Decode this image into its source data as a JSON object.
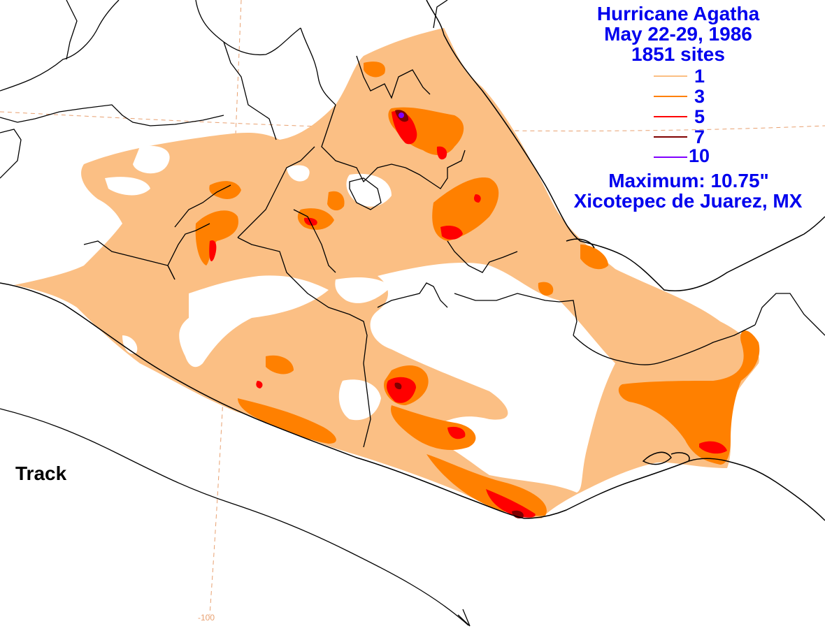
{
  "title": {
    "line1": "Hurricane Agatha",
    "line2": "May 22-29, 1986",
    "line3": "1851 sites"
  },
  "legend": {
    "items": [
      {
        "label": "1",
        "color": "#fbbf84"
      },
      {
        "label": "3",
        "color": "#ff8000"
      },
      {
        "label": "5",
        "color": "#ff0000"
      },
      {
        "label": "7",
        "color": "#800000"
      },
      {
        "label": "10",
        "color": "#8000ff"
      }
    ]
  },
  "maximum": {
    "value_text": "Maximum:  10.75\"",
    "location": "Xicotepec de Juarez, MX"
  },
  "track": {
    "label": "Track"
  },
  "grid": {
    "lon_label": "-100"
  },
  "colors": {
    "level1": "#fbbf84",
    "level3": "#ff8000",
    "level5": "#ff0000",
    "level7": "#800000",
    "level10": "#8000ff",
    "text": "#0000ee",
    "gridline": "#e8a070"
  }
}
